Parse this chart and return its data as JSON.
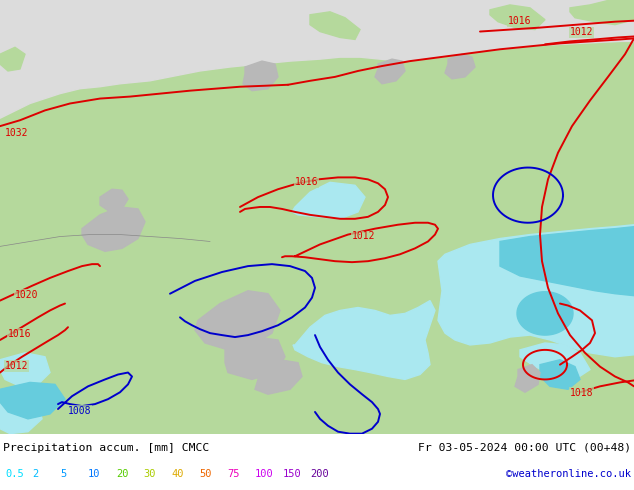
{
  "title_left": "Precipitation accum. [mm] CMCC",
  "title_right": "Fr 03-05-2024 00:00 UTC (00+48)",
  "credit": "©weatheronline.co.uk",
  "legend_values": [
    "0.5",
    "2",
    "5",
    "10",
    "20",
    "30",
    "40",
    "50",
    "75",
    "100",
    "150",
    "200"
  ],
  "legend_colors_display": [
    "#00ddff",
    "#00bbff",
    "#0099ff",
    "#0077ff",
    "#55cc00",
    "#aacc00",
    "#ddaa00",
    "#ee6600",
    "#ee00bb",
    "#cc00ee",
    "#9900cc",
    "#660099"
  ],
  "title_color": "#000000",
  "credit_color": "#0000cc",
  "figsize": [
    6.34,
    4.9
  ],
  "dpi": 100,
  "map_gray_bg": "#dcdcdc",
  "land_green": "#b5d99c",
  "cyan_light": "#aae8f0",
  "cyan_mid": "#66ccdd",
  "gray_land": "#b8b8b8",
  "red_contour": "#dd0000",
  "blue_contour": "#0000cc"
}
